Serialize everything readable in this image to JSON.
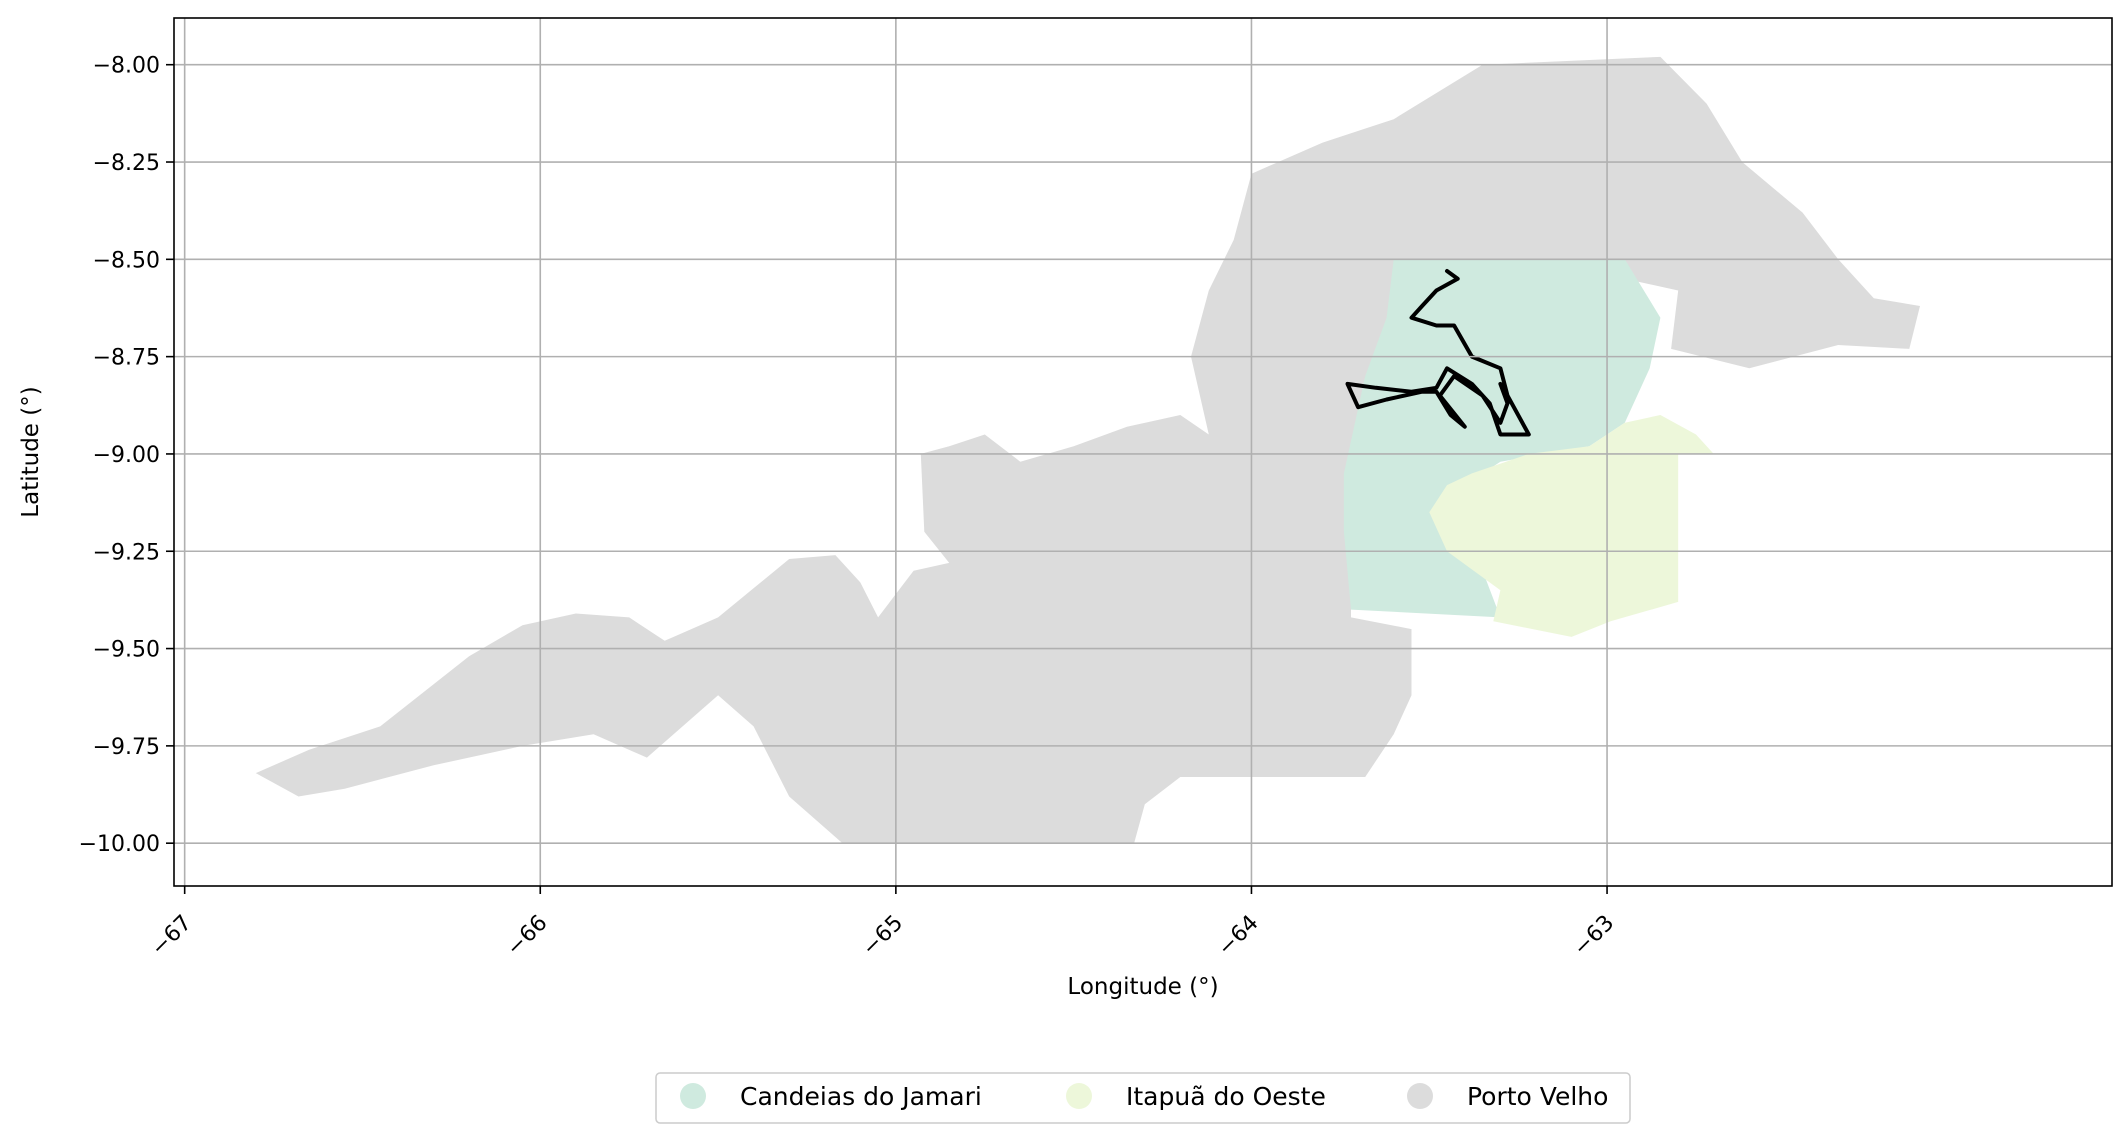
{
  "chart_data": {
    "type": "map",
    "xlabel": "Longitude (°)",
    "ylabel": "Latitude (°)",
    "xlim": [
      -67.03,
      -61.58
    ],
    "ylim": [
      -10.11,
      -7.88
    ],
    "xticks": [
      -67,
      -66,
      -65,
      -64,
      -63
    ],
    "yticks": [
      -8.0,
      -8.25,
      -8.5,
      -8.75,
      -9.0,
      -9.25,
      -9.5,
      -9.75,
      -10.0
    ],
    "grid": true,
    "legend_position": "bottom-center",
    "series": [
      {
        "name": "Candeias do Jamari",
        "color": "#cfeadf"
      },
      {
        "name": "Itapuã do Oeste",
        "color": "#edf7da"
      },
      {
        "name": "Porto Velho",
        "color": "#dcdcdc"
      }
    ],
    "overlay": {
      "color": "#000000"
    },
    "regions": {
      "porto_velho": [
        [
          -66.8,
          -9.82
        ],
        [
          -66.65,
          -9.76
        ],
        [
          -66.45,
          -9.7
        ],
        [
          -66.2,
          -9.52
        ],
        [
          -66.05,
          -9.44
        ],
        [
          -65.9,
          -9.41
        ],
        [
          -65.75,
          -9.42
        ],
        [
          -65.65,
          -9.48
        ],
        [
          -65.5,
          -9.42
        ],
        [
          -65.3,
          -9.27
        ],
        [
          -65.17,
          -9.26
        ],
        [
          -65.1,
          -9.33
        ],
        [
          -65.05,
          -9.42
        ],
        [
          -64.95,
          -9.3
        ],
        [
          -64.85,
          -9.28
        ],
        [
          -64.92,
          -9.2
        ],
        [
          -64.93,
          -9.0
        ],
        [
          -64.85,
          -8.98
        ],
        [
          -64.75,
          -8.95
        ],
        [
          -64.65,
          -9.02
        ],
        [
          -64.5,
          -8.98
        ],
        [
          -64.35,
          -8.93
        ],
        [
          -64.2,
          -8.9
        ],
        [
          -64.12,
          -8.95
        ],
        [
          -64.17,
          -8.75
        ],
        [
          -64.12,
          -8.58
        ],
        [
          -64.05,
          -8.45
        ],
        [
          -64.0,
          -8.28
        ],
        [
          -63.8,
          -8.2
        ],
        [
          -63.6,
          -8.14
        ],
        [
          -63.35,
          -8.0
        ],
        [
          -62.85,
          -7.98
        ],
        [
          -62.72,
          -8.1
        ],
        [
          -62.62,
          -8.25
        ],
        [
          -62.45,
          -8.38
        ],
        [
          -62.35,
          -8.5
        ],
        [
          -62.25,
          -8.6
        ],
        [
          -62.12,
          -8.62
        ],
        [
          -62.15,
          -8.73
        ],
        [
          -62.35,
          -8.72
        ],
        [
          -62.6,
          -8.78
        ],
        [
          -62.82,
          -8.73
        ],
        [
          -62.8,
          -8.58
        ],
        [
          -63.2,
          -8.5
        ],
        [
          -63.4,
          -8.55
        ],
        [
          -63.55,
          -8.58
        ],
        [
          -63.65,
          -8.75
        ],
        [
          -63.7,
          -8.95
        ],
        [
          -63.72,
          -9.1
        ],
        [
          -63.72,
          -9.42
        ],
        [
          -63.55,
          -9.45
        ],
        [
          -63.55,
          -9.62
        ],
        [
          -63.6,
          -9.72
        ],
        [
          -63.68,
          -9.83
        ],
        [
          -64.2,
          -9.83
        ],
        [
          -64.3,
          -9.9
        ],
        [
          -64.33,
          -10.0
        ],
        [
          -65.15,
          -10.0
        ],
        [
          -65.3,
          -9.88
        ],
        [
          -65.4,
          -9.7
        ],
        [
          -65.5,
          -9.62
        ],
        [
          -65.7,
          -9.78
        ],
        [
          -65.85,
          -9.72
        ],
        [
          -66.05,
          -9.75
        ],
        [
          -66.3,
          -9.8
        ],
        [
          -66.55,
          -9.86
        ],
        [
          -66.68,
          -9.88
        ]
      ],
      "candeias_do_jamari": [
        [
          -63.6,
          -8.5
        ],
        [
          -63.2,
          -8.5
        ],
        [
          -62.95,
          -8.5
        ],
        [
          -62.85,
          -8.65
        ],
        [
          -62.88,
          -8.78
        ],
        [
          -62.95,
          -8.92
        ],
        [
          -63.05,
          -8.98
        ],
        [
          -63.3,
          -9.02
        ],
        [
          -63.4,
          -9.08
        ],
        [
          -63.45,
          -9.1
        ],
        [
          -63.47,
          -9.2
        ],
        [
          -63.35,
          -9.3
        ],
        [
          -63.3,
          -9.42
        ],
        [
          -63.72,
          -9.4
        ],
        [
          -63.74,
          -9.2
        ],
        [
          -63.74,
          -9.05
        ],
        [
          -63.68,
          -8.8
        ],
        [
          -63.62,
          -8.65
        ]
      ],
      "itapua_do_oeste": [
        [
          -62.95,
          -8.92
        ],
        [
          -62.85,
          -8.9
        ],
        [
          -62.75,
          -8.95
        ],
        [
          -62.7,
          -9.0
        ],
        [
          -62.8,
          -9.0
        ],
        [
          -62.8,
          -9.38
        ],
        [
          -62.99,
          -9.43
        ],
        [
          -63.1,
          -9.47
        ],
        [
          -63.32,
          -9.43
        ],
        [
          -63.3,
          -9.35
        ],
        [
          -63.45,
          -9.25
        ],
        [
          -63.5,
          -9.15
        ],
        [
          -63.45,
          -9.08
        ],
        [
          -63.38,
          -9.05
        ],
        [
          -63.22,
          -9.0
        ],
        [
          -63.05,
          -8.98
        ]
      ]
    },
    "overlay_paths": [
      [
        [
          -63.45,
          -8.53
        ],
        [
          -63.42,
          -8.55
        ],
        [
          -63.48,
          -8.58
        ],
        [
          -63.52,
          -8.62
        ],
        [
          -63.55,
          -8.65
        ],
        [
          -63.48,
          -8.67
        ],
        [
          -63.43,
          -8.67
        ],
        [
          -63.38,
          -8.75
        ],
        [
          -63.3,
          -8.78
        ],
        [
          -63.28,
          -8.85
        ],
        [
          -63.22,
          -8.95
        ],
        [
          -63.3,
          -8.95
        ],
        [
          -63.33,
          -8.87
        ],
        [
          -63.38,
          -8.82
        ],
        [
          -63.45,
          -8.78
        ],
        [
          -63.48,
          -8.83
        ],
        [
          -63.55,
          -8.84
        ],
        [
          -63.65,
          -8.83
        ],
        [
          -63.73,
          -8.82
        ],
        [
          -63.7,
          -8.88
        ],
        [
          -63.62,
          -8.86
        ],
        [
          -63.52,
          -8.84
        ],
        [
          -63.48,
          -8.84
        ],
        [
          -63.44,
          -8.9
        ],
        [
          -63.4,
          -8.93
        ],
        [
          -63.47,
          -8.85
        ],
        [
          -63.43,
          -8.8
        ],
        [
          -63.35,
          -8.85
        ],
        [
          -63.3,
          -8.92
        ],
        [
          -63.28,
          -8.87
        ],
        [
          -63.3,
          -8.82
        ]
      ]
    ]
  },
  "legend": {
    "items": [
      {
        "label": "Candeias do Jamari",
        "color": "#cfeadf"
      },
      {
        "label": "Itapuã do Oeste",
        "color": "#edf7da"
      },
      {
        "label": "Porto Velho",
        "color": "#dcdcdc"
      }
    ]
  }
}
